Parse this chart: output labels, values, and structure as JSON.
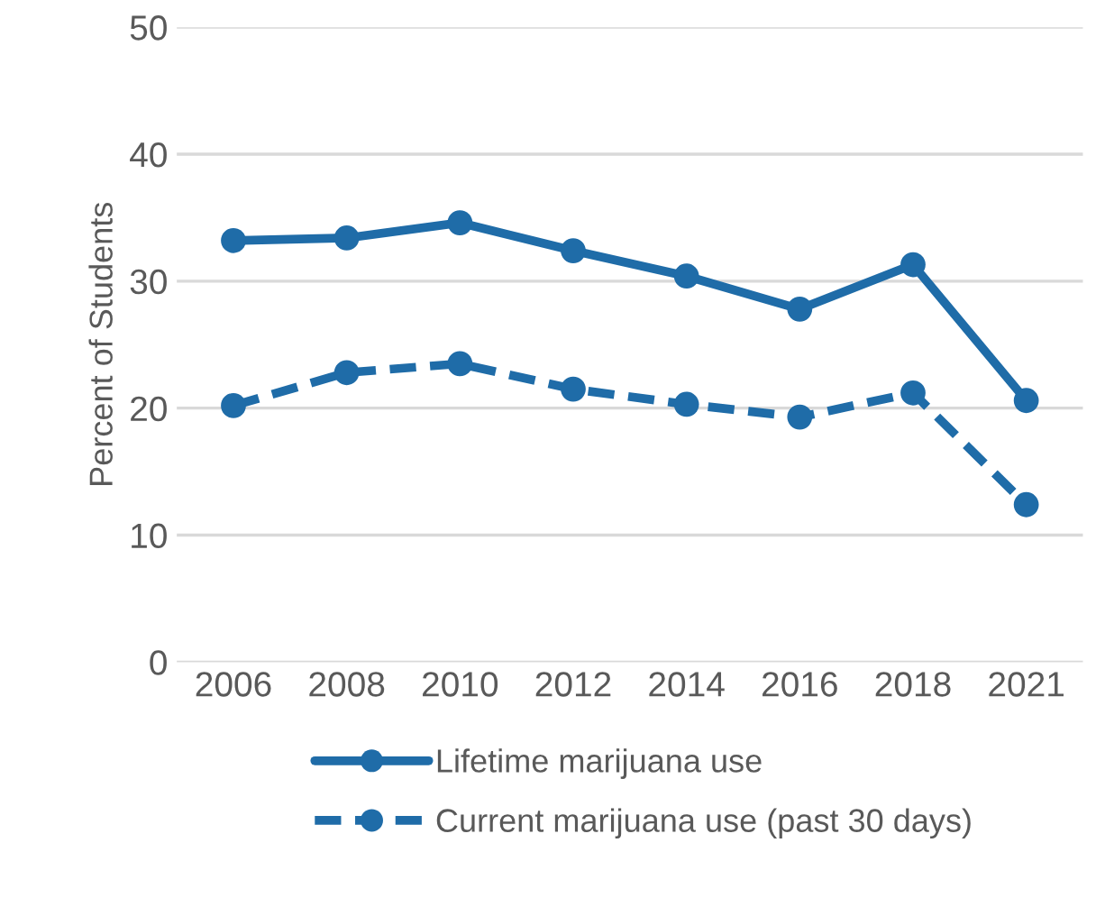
{
  "chart_data": {
    "type": "line",
    "ylabel": "Percent of Students",
    "categories": [
      "2006",
      "2008",
      "2010",
      "2012",
      "2014",
      "2016",
      "2018",
      "2021"
    ],
    "series": [
      {
        "name": "Lifetime marijuana use",
        "color": "#1f6ca8",
        "line_style": "solid",
        "values": [
          33.2,
          33.4,
          34.6,
          32.4,
          30.4,
          27.8,
          31.3,
          20.6
        ]
      },
      {
        "name": "Current marijuana use (past 30 days)",
        "color": "#1f6ca8",
        "line_style": "dashed",
        "values": [
          20.2,
          22.8,
          23.5,
          21.5,
          20.3,
          19.3,
          21.2,
          12.4
        ]
      }
    ],
    "ylim": [
      0,
      50
    ],
    "yticks": [
      0,
      10,
      20,
      30,
      40,
      50
    ],
    "grid": "y",
    "legend": "bottom",
    "marker": "circle"
  }
}
